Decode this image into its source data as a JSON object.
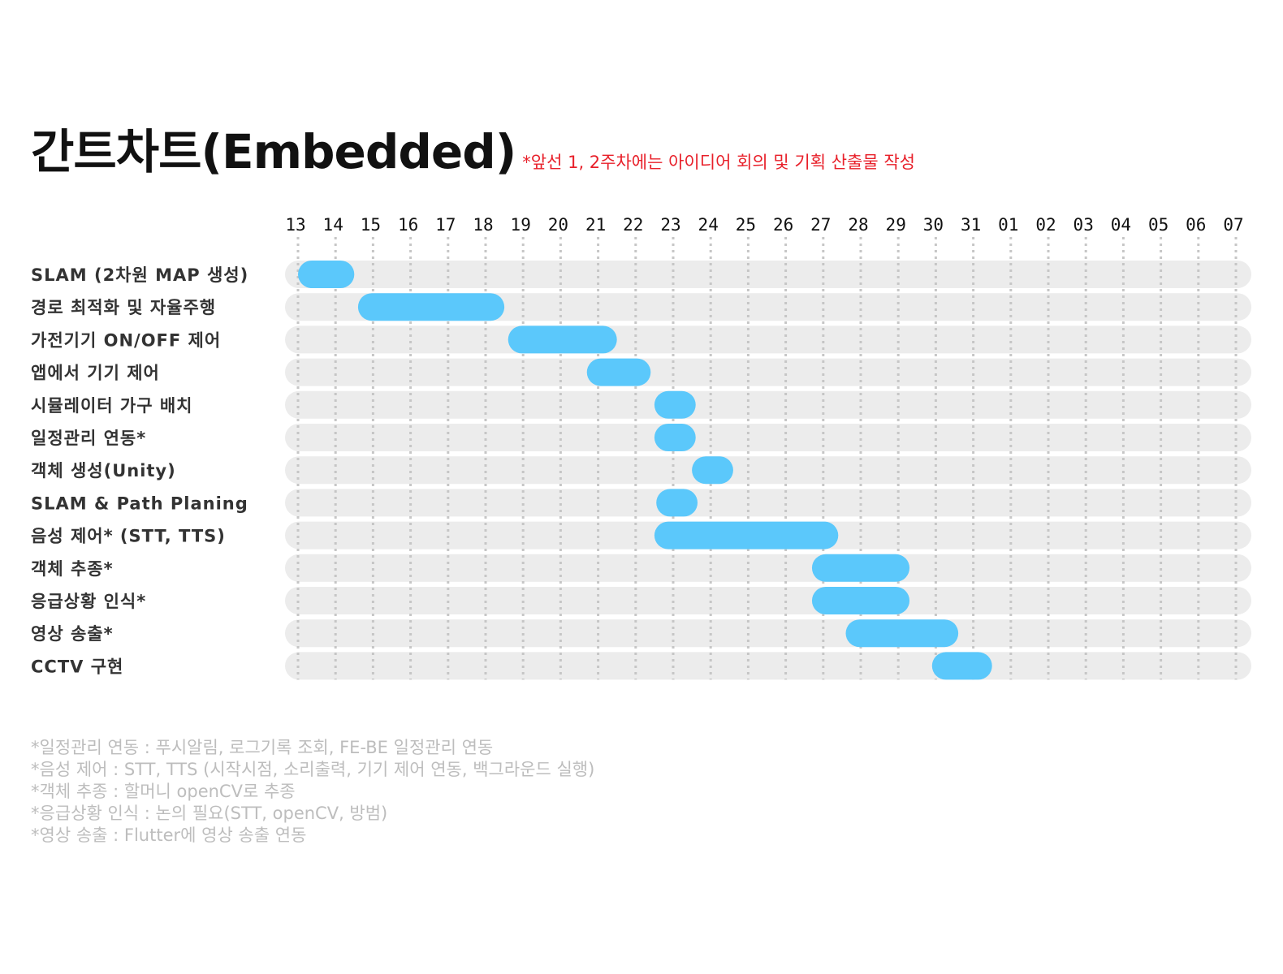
{
  "title": "간트차트(Embedded)",
  "subtitle": "*앞선 1, 2주차에는 아이디어 회의 및 기획 산출물 작성",
  "chart_data": {
    "type": "gantt",
    "days": [
      "13",
      "14",
      "15",
      "16",
      "17",
      "18",
      "19",
      "20",
      "21",
      "22",
      "23",
      "24",
      "25",
      "26",
      "27",
      "28",
      "29",
      "30",
      "31",
      "01",
      "02",
      "03",
      "04",
      "05",
      "06",
      "07"
    ],
    "tasks": [
      {
        "label": "SLAM (2차원 MAP 생성)",
        "start": 13,
        "end": 14.5
      },
      {
        "label": "경로 최적화 및 자율주행",
        "start": 14.6,
        "end": 18.5
      },
      {
        "label": "가전기기 ON/OFF 제어",
        "start": 18.6,
        "end": 21.5
      },
      {
        "label": "앱에서 기기 제어",
        "start": 20.7,
        "end": 22.4
      },
      {
        "label": "시뮬레이터 가구 배치",
        "start": 22.5,
        "end": 23.6
      },
      {
        "label": "일정관리 연동*",
        "start": 22.5,
        "end": 23.6
      },
      {
        "label": "객체 생성(Unity)",
        "start": 23.5,
        "end": 24.6
      },
      {
        "label": "SLAM & Path Planing",
        "start": 22.55,
        "end": 23.65
      },
      {
        "label": "음성 제어* (STT, TTS)",
        "start": 22.5,
        "end": 27.4
      },
      {
        "label": "객체 추종*",
        "start": 26.7,
        "end": 29.3
      },
      {
        "label": "응급상황 인식*",
        "start": 26.7,
        "end": 29.3
      },
      {
        "label": "영상 송출*",
        "start": 27.6,
        "end": 30.6
      },
      {
        "label": "CCTV 구현",
        "start": 29.9,
        "end": 31.5
      }
    ],
    "colors": {
      "bar": "#5bc8fb",
      "track": "#ececec",
      "grid": "#c6c6c6",
      "label": "#333333",
      "tick": "#111111"
    }
  },
  "notes": [
    "*일정관리 연동 : 푸시알림, 로그기록 조회, FE-BE 일정관리 연동",
    "*음성 제어 : STT, TTS (시작시점, 소리출력, 기기 제어 연동, 백그라운드 실행)",
    "*객체 추종 : 할머니 openCV로 추종",
    "*응급상황 인식 : 논의 필요(STT, openCV, 방범)",
    "*영상 송출 : Flutter에 영상 송출 연동"
  ]
}
